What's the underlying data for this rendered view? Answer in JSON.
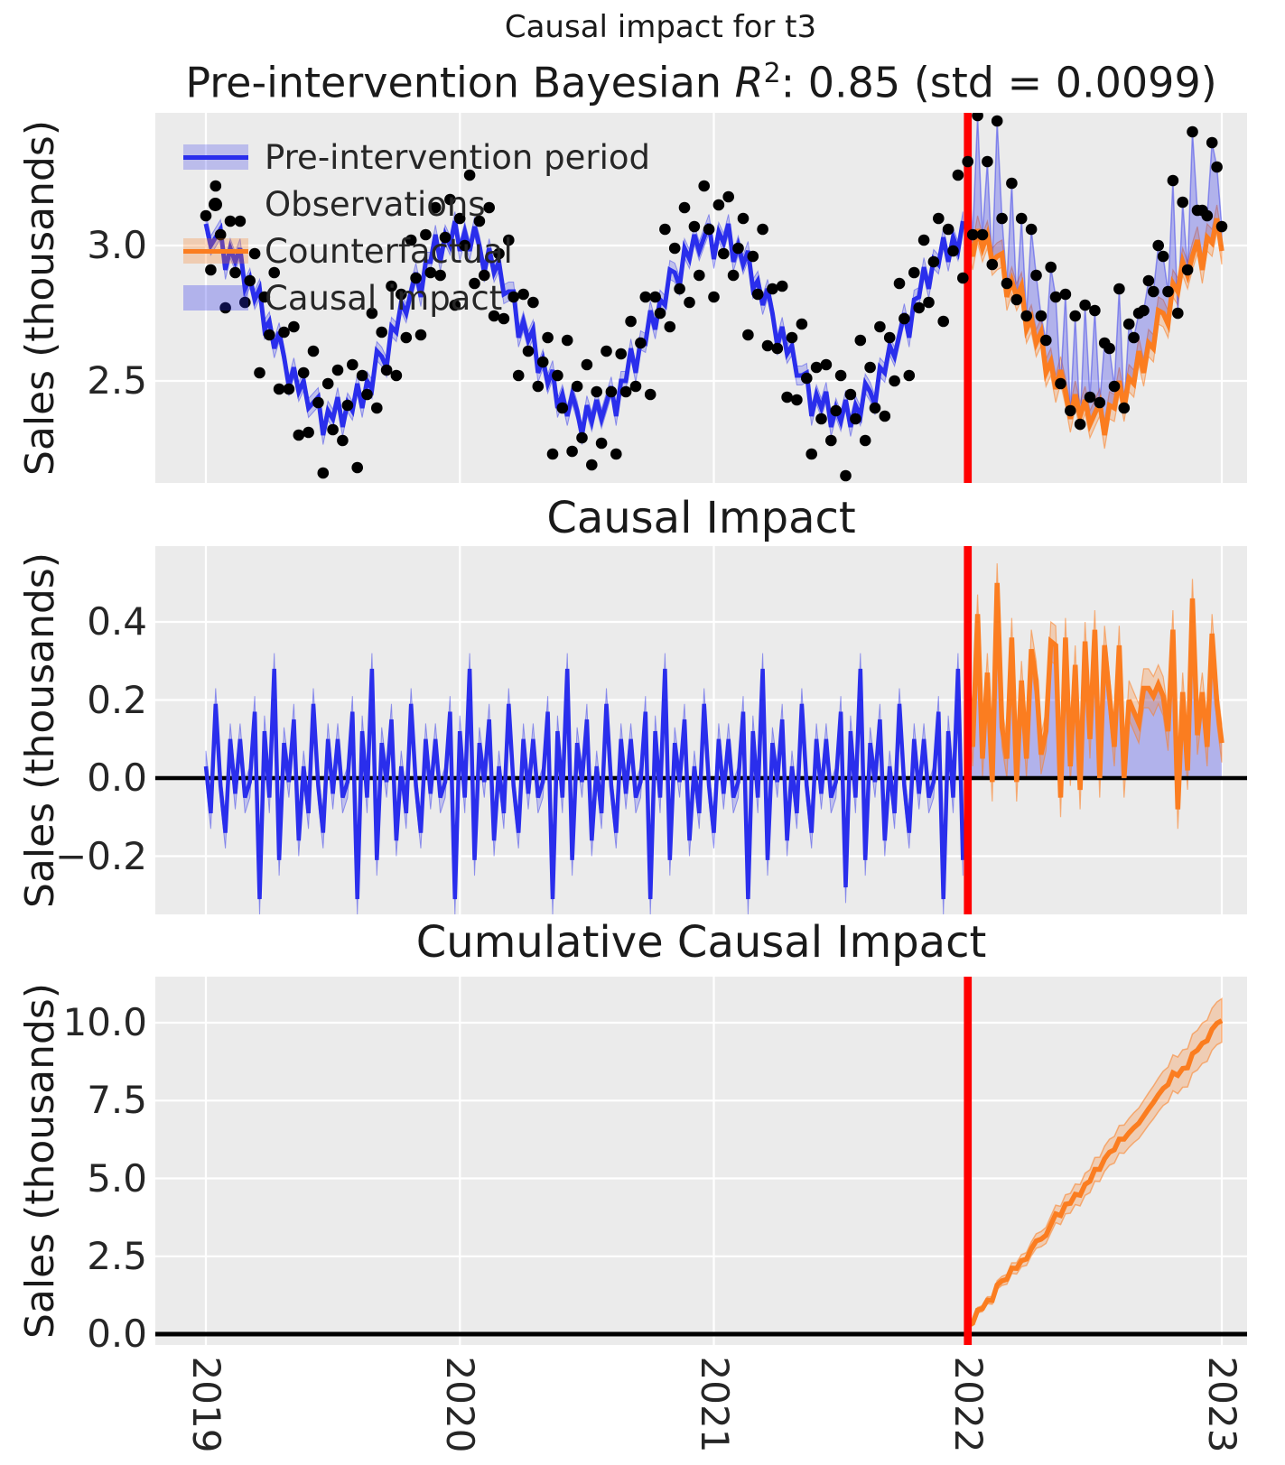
{
  "figure": {
    "suptitle": "Causal impact for t3",
    "intervention_year": 2022,
    "panel_bg": "#ebebeb"
  },
  "colors": {
    "panel_bg": "#ebebeb",
    "grid": "#ffffff",
    "text": "#262626",
    "pre_intervention_line": "#2a2eec",
    "counterfactual_line": "#fb7d20",
    "band_blue": "rgba(42,46,236,0.22)",
    "band_blue_strong": "rgba(42,46,236,0.30)",
    "band_blue_edge": "rgba(42,46,236,0.45)",
    "band_orange": "rgba(251,125,32,0.27)",
    "band_orange_edge": "rgba(251,125,32,0.55)",
    "observation_dot": "#000000",
    "intervention_line": "#ff0000",
    "zero_line": "#000000"
  },
  "legend": {
    "items": [
      {
        "label": "Pre-intervention period",
        "swatch": "band-line-blue"
      },
      {
        "label": "Observations",
        "swatch": "black-dot"
      },
      {
        "label": "Counterfactual",
        "swatch": "band-line-orange"
      },
      {
        "label": "Causal impact",
        "swatch": "fill-blue"
      }
    ]
  },
  "xticks": {
    "values": [
      2019,
      2020,
      2021,
      2022,
      2023
    ],
    "labels": [
      "2019",
      "2020",
      "2021",
      "2022",
      "2023"
    ]
  },
  "chart_data": [
    {
      "type": "line+scatter",
      "panel": "model-fit-and-counterfactual",
      "title_parts": {
        "prefix": "Pre-intervention Bayesian ",
        "r": "R",
        "exp": "2",
        "rest": ": 0.85 (std = 0.0099)"
      },
      "ylabel": "Sales (thousands)",
      "xlabel": "",
      "x_unit": "weeks",
      "x_start_year": 2019,
      "points_per_year": 52,
      "intervention_year": 2022,
      "ylim": [
        2.12,
        3.49
      ],
      "yticks": {
        "values": [
          3.0,
          2.5
        ],
        "labels": [
          "3.0",
          "2.5"
        ]
      },
      "series": {
        "observations": [
          3.11,
          2.91,
          3.22,
          3.04,
          2.77,
          3.09,
          2.9,
          3.09,
          2.79,
          2.87,
          2.97,
          2.53,
          2.81,
          2.67,
          2.9,
          2.47,
          2.68,
          2.47,
          2.7,
          2.3,
          2.53,
          2.31,
          2.61,
          2.42,
          2.16,
          2.49,
          2.32,
          2.54,
          2.28,
          2.41,
          2.56,
          2.18,
          2.52,
          2.45,
          2.75,
          2.4,
          2.68,
          2.54,
          2.85,
          2.52,
          2.82,
          2.66,
          3.02,
          2.88,
          2.67,
          3.04,
          2.9,
          3.14,
          2.89,
          3.03,
          3.17,
          2.78,
          3.1,
          3.0,
          3.26,
          2.86,
          3.09,
          2.89,
          3.14,
          2.74,
          2.97,
          2.73,
          3.02,
          2.81,
          2.52,
          2.82,
          2.61,
          2.79,
          2.48,
          2.57,
          2.66,
          2.23,
          2.52,
          2.4,
          2.65,
          2.24,
          2.48,
          2.29,
          2.56,
          2.19,
          2.46,
          2.27,
          2.61,
          2.46,
          2.23,
          2.6,
          2.46,
          2.72,
          2.48,
          2.64,
          2.81,
          2.45,
          2.81,
          2.75,
          3.06,
          2.7,
          2.99,
          2.84,
          3.14,
          2.79,
          3.07,
          2.89,
          3.22,
          3.06,
          2.81,
          3.15,
          2.97,
          3.18,
          2.89,
          2.99,
          3.1,
          2.67,
          2.96,
          2.82,
          3.06,
          2.63,
          2.84,
          2.62,
          2.85,
          2.44,
          2.66,
          2.43,
          2.71,
          2.51,
          2.23,
          2.55,
          2.36,
          2.56,
          2.28,
          2.39,
          2.52,
          2.15,
          2.45,
          2.36,
          2.65,
          2.28,
          2.55,
          2.4,
          2.7,
          2.37,
          2.66,
          2.5,
          2.86,
          2.73,
          2.52,
          2.9,
          2.77,
          3.02,
          2.79,
          2.94,
          3.1,
          2.72,
          3.06,
          2.98,
          3.26,
          2.88,
          3.31,
          3.04,
          3.48,
          3.04,
          3.31,
          2.93,
          3.46,
          3.1,
          2.86,
          3.23,
          2.8,
          3.1,
          2.74,
          3.06,
          2.89,
          2.74,
          2.65,
          2.92,
          2.81,
          2.49,
          2.82,
          2.39,
          2.74,
          2.34,
          2.78,
          2.44,
          2.76,
          2.42,
          2.64,
          2.62,
          2.48,
          2.84,
          2.4,
          2.71,
          2.66,
          2.75,
          2.76,
          2.87,
          2.83,
          3.0,
          2.96,
          2.83,
          3.24,
          2.75,
          3.16,
          2.91,
          3.42,
          3.13,
          3.13,
          3.11,
          3.38,
          3.29,
          3.07
        ],
        "pre_intervention_fit": [
          3.08,
          3.0,
          3.03,
          3.06,
          2.91,
          2.99,
          2.94,
          2.99,
          2.84,
          2.88,
          2.8,
          2.84,
          2.69,
          2.72,
          2.62,
          2.68,
          2.59,
          2.48,
          2.55,
          2.46,
          2.5,
          2.4,
          2.42,
          2.44,
          2.3,
          2.39,
          2.36,
          2.44,
          2.33,
          2.42,
          2.39,
          2.49,
          2.4,
          2.5,
          2.47,
          2.61,
          2.59,
          2.55,
          2.7,
          2.68,
          2.79,
          2.75,
          2.83,
          2.9,
          2.81,
          2.94,
          2.94,
          3.04,
          2.94,
          3.04,
          3.0,
          3.09,
          2.98,
          3.05,
          2.98,
          3.07,
          3.0,
          2.9,
          2.99,
          2.9,
          2.94,
          2.82,
          2.83,
          2.83,
          2.66,
          2.72,
          2.65,
          2.69,
          2.53,
          2.58,
          2.49,
          2.54,
          2.4,
          2.45,
          2.37,
          2.45,
          2.39,
          2.3,
          2.41,
          2.35,
          2.43,
          2.36,
          2.42,
          2.48,
          2.37,
          2.5,
          2.5,
          2.62,
          2.53,
          2.65,
          2.64,
          2.76,
          2.69,
          2.8,
          2.78,
          2.91,
          2.9,
          2.85,
          2.99,
          2.95,
          3.04,
          2.98,
          3.03,
          3.08,
          2.95,
          3.05,
          3.01,
          3.08,
          2.94,
          3.0,
          2.93,
          2.98,
          2.84,
          2.87,
          2.78,
          2.84,
          2.75,
          2.63,
          2.7,
          2.6,
          2.63,
          2.52,
          2.52,
          2.53,
          2.37,
          2.45,
          2.4,
          2.46,
          2.33,
          2.4,
          2.35,
          2.43,
          2.33,
          2.41,
          2.37,
          2.49,
          2.46,
          2.41,
          2.55,
          2.53,
          2.63,
          2.59,
          2.67,
          2.75,
          2.66,
          2.8,
          2.81,
          2.92,
          2.84,
          2.95,
          2.93,
          3.03,
          2.94,
          3.03,
          2.98,
          3.09
        ],
        "counterfactual": [
          3.04,
          2.96,
          3.06,
          2.99,
          3.04,
          2.94,
          2.96,
          2.97,
          2.81,
          2.87,
          2.81,
          2.85,
          2.69,
          2.73,
          2.64,
          2.68,
          2.53,
          2.57,
          2.47,
          2.54,
          2.46,
          2.36,
          2.45,
          2.37,
          2.43,
          2.34,
          2.38,
          2.42,
          2.3,
          2.41,
          2.4,
          2.5,
          2.4,
          2.51,
          2.49,
          2.61,
          2.53,
          2.64,
          2.62,
          2.76,
          2.75,
          2.71,
          2.86,
          2.83,
          2.94,
          2.89,
          2.96,
          3.02,
          2.91,
          3.03,
          3.01,
          3.1,
          2.98
        ],
        "fit_band_halfwidth": 0.035,
        "counterfactual_band_halfwidth": 0.05
      },
      "legend_entries": [
        "Pre-intervention period",
        "Observations",
        "Counterfactual",
        "Causal impact"
      ]
    },
    {
      "type": "line",
      "panel": "causal-impact",
      "title": "Causal Impact",
      "ylabel": "Sales (thousands)",
      "ylim": [
        -0.35,
        0.59
      ],
      "yticks": {
        "values": [
          0.4,
          0.2,
          0.0,
          -0.2
        ],
        "labels": [
          "0.4",
          "0.2",
          "0.0",
          "−0.2"
        ]
      },
      "derivation": "impact = observations - pre_intervention_fit (before 2022) and observations - counterfactual (after 2022)",
      "band_halfwidth_pre": 0.04,
      "band_halfwidth_post": 0.05,
      "zero_reference_line": 0.0
    },
    {
      "type": "line",
      "panel": "cumulative-causal-impact",
      "title": "Cumulative Causal Impact",
      "ylabel": "Sales (thousands)",
      "ylim": [
        -0.35,
        11.5
      ],
      "yticks": {
        "values": [
          10.0,
          7.5,
          5.0,
          2.5,
          0.0
        ],
        "labels": [
          "10.0",
          "7.5",
          "5.0",
          "2.5",
          "0.0"
        ]
      },
      "derivation": "running sum of post-intervention impact starting at 2022",
      "final_cumulative_impact": 10.1,
      "band_halfwidth_start": 0.06,
      "band_halfwidth_end": 0.7,
      "zero_reference_line": 0.0
    }
  ]
}
